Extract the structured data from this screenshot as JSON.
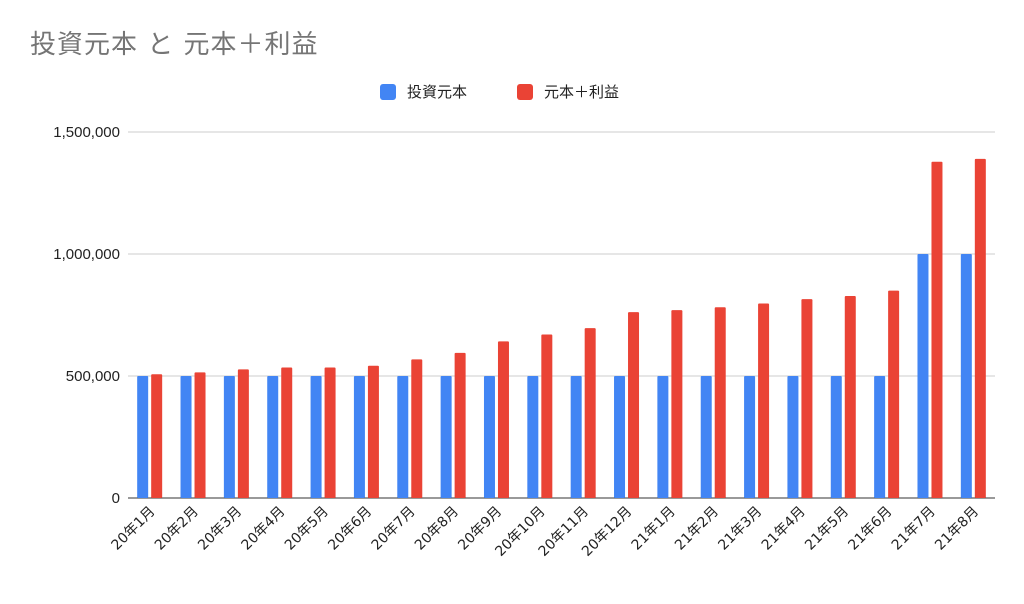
{
  "chart_data": {
    "type": "bar",
    "title": "投資元本 と 元本＋利益",
    "legend_position": "top",
    "grid": true,
    "categories": [
      "20年1月",
      "20年2月",
      "20年3月",
      "20年4月",
      "20年5月",
      "20年6月",
      "20年7月",
      "20年8月",
      "20年9月",
      "20年10月",
      "20年11月",
      "20年12月",
      "21年1月",
      "21年2月",
      "21年3月",
      "21年4月",
      "21年5月",
      "21年6月",
      "21年7月",
      "21年8月"
    ],
    "series": [
      {
        "name": "投資元本",
        "color": "#4285f4",
        "values": [
          500000,
          500000,
          500000,
          500000,
          500000,
          500000,
          500000,
          500000,
          500000,
          500000,
          500000,
          500000,
          500000,
          500000,
          500000,
          500000,
          500000,
          500000,
          1000000,
          1000000
        ]
      },
      {
        "name": "元本＋利益",
        "color": "#ea4335",
        "values": [
          507000,
          515000,
          527000,
          535000,
          535000,
          542000,
          568000,
          595000,
          642000,
          670000,
          696000,
          762000,
          770000,
          782000,
          797000,
          815000,
          828000,
          850000,
          1378000,
          1390000
        ]
      }
    ],
    "ylim": [
      0,
      1500000
    ],
    "yticks": [
      "0",
      "500,000",
      "1,000,000",
      "1,500,000"
    ],
    "ytick_values": [
      0,
      500000,
      1000000,
      1500000
    ],
    "xlabel": "",
    "ylabel": ""
  }
}
